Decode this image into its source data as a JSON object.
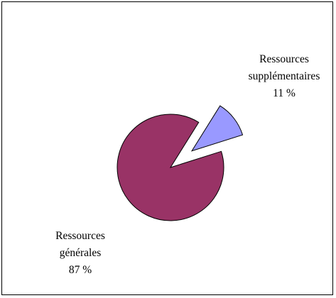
{
  "chart_data": {
    "type": "pie",
    "slices": [
      {
        "label_lines": [
          "Ressources",
          "supplémentaires"
        ],
        "value": 11,
        "value_label": "11 %",
        "color": "#9999ff",
        "exploded": true
      },
      {
        "label_lines": [
          "Ressources",
          "générales"
        ],
        "value": 87,
        "value_label": "87 %",
        "color": "#993366",
        "exploded": false
      }
    ],
    "legend": "none",
    "border": true
  }
}
